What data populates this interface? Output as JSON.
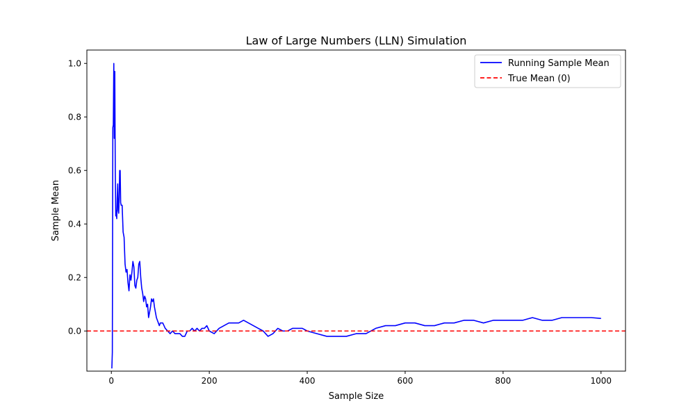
{
  "chart_data": {
    "type": "line",
    "title": "Law of Large Numbers (LLN) Simulation",
    "xlabel": "Sample Size",
    "ylabel": "Sample Mean",
    "xlim": [
      -50,
      1050
    ],
    "ylim": [
      -0.15,
      1.05
    ],
    "x_ticks": [
      0,
      200,
      400,
      600,
      800,
      1000
    ],
    "y_ticks": [
      0.0,
      0.2,
      0.4,
      0.6,
      0.8,
      1.0
    ],
    "x_tick_labels": [
      "0",
      "200",
      "400",
      "600",
      "800",
      "1000"
    ],
    "y_tick_labels": [
      "0.0",
      "0.2",
      "0.4",
      "0.6",
      "0.8",
      "1.0"
    ],
    "grid": false,
    "legend_position": "top-right",
    "series": [
      {
        "name": "Running Sample Mean",
        "color": "#0000ff",
        "style": "solid",
        "x": [
          1,
          2,
          3,
          4,
          5,
          6,
          7,
          8,
          9,
          10,
          11,
          12,
          13,
          14,
          15,
          16,
          17,
          18,
          19,
          20,
          22,
          24,
          26,
          28,
          30,
          32,
          34,
          36,
          38,
          40,
          42,
          44,
          46,
          48,
          50,
          52,
          54,
          56,
          58,
          60,
          62,
          64,
          66,
          68,
          70,
          72,
          74,
          76,
          78,
          80,
          82,
          84,
          86,
          88,
          90,
          92,
          94,
          96,
          98,
          100,
          105,
          110,
          115,
          120,
          125,
          130,
          135,
          140,
          145,
          150,
          155,
          160,
          165,
          170,
          175,
          180,
          185,
          190,
          195,
          200,
          210,
          220,
          230,
          240,
          250,
          260,
          270,
          280,
          290,
          300,
          310,
          320,
          330,
          340,
          350,
          360,
          370,
          380,
          390,
          400,
          420,
          440,
          460,
          480,
          500,
          520,
          540,
          560,
          580,
          600,
          620,
          640,
          660,
          680,
          700,
          720,
          740,
          760,
          780,
          800,
          820,
          840,
          860,
          880,
          900,
          920,
          940,
          960,
          980,
          1000
        ],
        "y": [
          -0.14,
          -0.08,
          0.76,
          0.77,
          1.0,
          0.72,
          0.97,
          0.6,
          0.43,
          0.45,
          0.42,
          0.5,
          0.55,
          0.45,
          0.44,
          0.5,
          0.6,
          0.6,
          0.48,
          0.47,
          0.47,
          0.37,
          0.35,
          0.25,
          0.22,
          0.23,
          0.18,
          0.15,
          0.21,
          0.19,
          0.22,
          0.26,
          0.24,
          0.17,
          0.16,
          0.19,
          0.2,
          0.25,
          0.26,
          0.2,
          0.16,
          0.14,
          0.11,
          0.13,
          0.12,
          0.09,
          0.1,
          0.05,
          0.07,
          0.09,
          0.12,
          0.11,
          0.12,
          0.09,
          0.07,
          0.05,
          0.04,
          0.03,
          0.02,
          0.03,
          0.03,
          0.01,
          0.0,
          -0.01,
          0.0,
          -0.01,
          -0.01,
          -0.01,
          -0.02,
          -0.02,
          0.0,
          0.0,
          0.01,
          0.0,
          0.01,
          0.0,
          0.01,
          0.01,
          0.02,
          0.0,
          -0.01,
          0.01,
          0.02,
          0.03,
          0.03,
          0.03,
          0.04,
          0.03,
          0.02,
          0.01,
          0.0,
          -0.02,
          -0.01,
          0.01,
          0.0,
          0.0,
          0.01,
          0.01,
          0.01,
          0.0,
          -0.01,
          -0.02,
          -0.02,
          -0.02,
          -0.01,
          -0.01,
          0.01,
          0.02,
          0.02,
          0.03,
          0.03,
          0.02,
          0.02,
          0.03,
          0.03,
          0.04,
          0.04,
          0.03,
          0.04,
          0.04,
          0.04,
          0.04,
          0.05,
          0.04,
          0.04,
          0.05,
          0.05,
          0.05,
          0.05,
          0.047
        ]
      },
      {
        "name": "True Mean (0)",
        "color": "#ff0000",
        "style": "dashed",
        "x": [
          -50,
          1050
        ],
        "y": [
          0,
          0
        ]
      }
    ]
  }
}
